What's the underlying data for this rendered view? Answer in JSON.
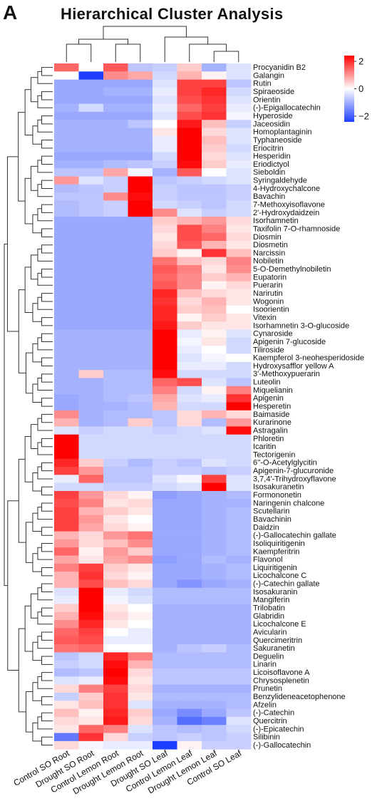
{
  "panel_label": "A",
  "chart_data": {
    "type": "heatmap",
    "title": "Hierarchical Cluster Analysis",
    "columns": [
      "Control SO Root",
      "Drought SO Root",
      "Control Lemon Root",
      "Drought Lemon Root",
      "Drought SO Leaf",
      "Control Lemon Leaf",
      "Drought Lemon Leaf",
      "Control SO Leaf"
    ],
    "color_scale": {
      "min": -2,
      "max": 2,
      "low": "#1f3fff",
      "mid": "#ffffff",
      "high": "#ff0000",
      "ticks": [
        "2",
        "0",
        "−2"
      ]
    },
    "rows": [
      {
        "name": "Procyanidin B2",
        "values": [
          1.2,
          0.0,
          1.3,
          -0.6,
          -0.5,
          0.4,
          -0.8,
          -0.3
        ]
      },
      {
        "name": "Galangin",
        "values": [
          0.0,
          -2.0,
          0.9,
          0.7,
          -0.4,
          0.6,
          0.1,
          -0.3
        ]
      },
      {
        "name": "Rutin",
        "values": [
          -0.9,
          -0.9,
          -0.9,
          -0.9,
          -0.3,
          1.5,
          1.5,
          -0.6
        ]
      },
      {
        "name": "Spiraeoside",
        "values": [
          -0.9,
          -0.9,
          -0.8,
          -0.8,
          -0.2,
          1.5,
          1.7,
          -0.4
        ]
      },
      {
        "name": "Orientin",
        "values": [
          -0.9,
          -0.9,
          -0.9,
          -0.9,
          -0.3,
          1.4,
          1.6,
          -0.3
        ]
      },
      {
        "name": "(-)-Epigallocatechin",
        "values": [
          -0.8,
          -0.4,
          -0.8,
          -0.8,
          -0.2,
          1.2,
          1.5,
          -0.2
        ]
      },
      {
        "name": "Hyperoside",
        "values": [
          -0.9,
          -0.9,
          -0.9,
          -0.9,
          -0.3,
          1.4,
          1.6,
          -0.1
        ]
      },
      {
        "name": "Jaceosidin",
        "values": [
          -0.8,
          -0.8,
          -0.8,
          -0.6,
          0.0,
          1.8,
          0.5,
          -0.5
        ]
      },
      {
        "name": "Homoplantaginin",
        "values": [
          -0.8,
          -0.8,
          -0.8,
          -0.8,
          0.2,
          2.0,
          0.3,
          -0.3
        ]
      },
      {
        "name": "Typhaneoside",
        "values": [
          -0.8,
          -0.8,
          -0.8,
          -0.8,
          -0.2,
          2.0,
          0.5,
          -0.3
        ]
      },
      {
        "name": "Eriocitrin",
        "values": [
          -0.8,
          -0.8,
          -0.8,
          -0.8,
          -0.2,
          2.0,
          0.4,
          -0.4
        ]
      },
      {
        "name": "Hesperidin",
        "values": [
          -0.9,
          -0.9,
          -0.9,
          -0.9,
          -0.4,
          2.0,
          0.3,
          -0.3
        ]
      },
      {
        "name": "Eriodictyol",
        "values": [
          -0.8,
          -0.8,
          -0.7,
          -0.6,
          -0.5,
          1.9,
          0.4,
          -0.2
        ]
      },
      {
        "name": "Sieboldin",
        "values": [
          -0.6,
          -0.6,
          0.7,
          -0.1,
          -0.8,
          1.3,
          0.0,
          -0.3
        ]
      },
      {
        "name": "Syringaldehyde",
        "values": [
          0.8,
          -0.3,
          -0.5,
          2.0,
          -0.6,
          -0.5,
          -0.4,
          -0.3
        ]
      },
      {
        "name": "4-Hydroxychalcone",
        "values": [
          -0.7,
          -0.6,
          -0.5,
          2.0,
          -0.5,
          -0.6,
          -0.6,
          -0.5
        ]
      },
      {
        "name": "Bavachin",
        "values": [
          -0.6,
          -0.6,
          0.9,
          1.9,
          -0.5,
          -0.6,
          -0.6,
          -0.5
        ]
      },
      {
        "name": "7-Methoxyisoflavone",
        "values": [
          -0.7,
          -0.6,
          -0.5,
          2.0,
          -0.4,
          -0.5,
          -0.6,
          -0.4
        ]
      },
      {
        "name": "2'-Hydroxydaidzein",
        "values": [
          -0.7,
          -0.6,
          -0.5,
          2.0,
          0.9,
          -0.3,
          -0.5,
          -0.4
        ]
      },
      {
        "name": "Isorhamnetin",
        "values": [
          -0.9,
          -0.9,
          -0.9,
          -0.9,
          0.4,
          0.6,
          0.8,
          0.3
        ]
      },
      {
        "name": "Taxifolin 7-O-rhamnoside",
        "values": [
          -0.9,
          -0.9,
          -0.9,
          -0.9,
          0.3,
          1.4,
          1.0,
          0.2
        ]
      },
      {
        "name": "Diosmin",
        "values": [
          -0.9,
          -0.9,
          -0.9,
          -0.9,
          0.2,
          1.4,
          1.2,
          0.3
        ]
      },
      {
        "name": "Diosmetin",
        "values": [
          -0.9,
          -0.9,
          -0.9,
          -0.9,
          0.3,
          1.3,
          0.6,
          0.2
        ]
      },
      {
        "name": "Narcissin",
        "values": [
          -0.9,
          -0.9,
          -0.9,
          -0.9,
          0.4,
          0.1,
          1.6,
          0.5
        ]
      },
      {
        "name": "Nobiletin",
        "values": [
          -0.9,
          -0.9,
          -0.9,
          -0.9,
          1.1,
          0.5,
          0.3,
          1.0
        ]
      },
      {
        "name": "5-O-Demethylnobiletin",
        "values": [
          -0.9,
          -0.9,
          -0.9,
          -0.9,
          1.3,
          1.0,
          0.2,
          0.9
        ]
      },
      {
        "name": "Eupatorin",
        "values": [
          -0.9,
          -0.9,
          -0.9,
          -0.9,
          1.2,
          0.9,
          0.4,
          0.6
        ]
      },
      {
        "name": "Puerarin",
        "values": [
          -0.9,
          -0.9,
          -0.9,
          -0.9,
          1.3,
          0.9,
          0.1,
          0.3
        ]
      },
      {
        "name": "Narirutin",
        "values": [
          -0.9,
          -0.9,
          -0.9,
          -0.9,
          1.7,
          0.5,
          0.3,
          0.2
        ]
      },
      {
        "name": "Wogonin",
        "values": [
          -0.9,
          -0.9,
          -0.9,
          -0.9,
          1.6,
          0.3,
          0.6,
          0.2
        ]
      },
      {
        "name": "Isoorientin",
        "values": [
          -0.9,
          -0.9,
          -0.9,
          -0.9,
          1.7,
          0.4,
          0.5,
          0.0
        ]
      },
      {
        "name": "Vitexin",
        "values": [
          -0.9,
          -0.9,
          -0.9,
          -0.9,
          1.7,
          0.1,
          0.4,
          0.2
        ]
      },
      {
        "name": "Isorhamnetin 3-O-glucoside",
        "values": [
          -0.9,
          -0.9,
          -0.9,
          -0.9,
          1.8,
          0.4,
          0.2,
          0.2
        ]
      },
      {
        "name": "Cynaroside",
        "values": [
          -0.8,
          -0.8,
          -0.8,
          -0.8,
          2.0,
          -0.2,
          0.1,
          -0.3
        ]
      },
      {
        "name": "Apigenin 7-glucoside",
        "values": [
          -0.8,
          -0.8,
          -0.8,
          -0.8,
          2.0,
          -0.1,
          0.2,
          -0.4
        ]
      },
      {
        "name": "Tiliroside",
        "values": [
          -0.8,
          -0.8,
          -0.8,
          -0.8,
          2.0,
          -0.2,
          0.0,
          -0.4
        ]
      },
      {
        "name": "Kaempferol 3-neohesperidoside",
        "values": [
          -0.8,
          -0.8,
          -0.8,
          -0.8,
          2.0,
          -0.3,
          -0.1,
          0.0
        ]
      },
      {
        "name": "Hydroxysafflor yellow A",
        "values": [
          -0.8,
          -0.8,
          -0.8,
          -0.8,
          2.0,
          -0.2,
          -0.2,
          -0.4
        ]
      },
      {
        "name": "3'-Methoxypuerarin",
        "values": [
          -0.8,
          0.4,
          -0.7,
          -0.7,
          1.9,
          -0.4,
          -0.4,
          -0.4
        ]
      },
      {
        "name": "Luteolin",
        "values": [
          -0.8,
          -0.8,
          -0.7,
          -0.7,
          1.2,
          1.4,
          -0.3,
          -0.6
        ]
      },
      {
        "name": "Miquelianin",
        "values": [
          -0.8,
          -0.8,
          -0.7,
          -0.7,
          1.0,
          -0.4,
          0.1,
          1.0
        ]
      },
      {
        "name": "Apigenin",
        "values": [
          -0.9,
          -0.8,
          -0.7,
          -0.6,
          0.7,
          -0.3,
          -0.2,
          1.6
        ]
      },
      {
        "name": "Hesperetin",
        "values": [
          -0.9,
          -0.8,
          -0.8,
          -0.7,
          0.6,
          -0.4,
          -0.4,
          2.0
        ]
      },
      {
        "name": "Baimaside",
        "values": [
          0.9,
          -0.8,
          -0.7,
          -0.7,
          -0.6,
          0.3,
          0.6,
          0.3
        ]
      },
      {
        "name": "Kurarinone",
        "values": [
          0.6,
          -0.8,
          -0.7,
          0.4,
          -0.6,
          0.3,
          -0.7,
          0.8
        ]
      },
      {
        "name": "Astragalin",
        "values": [
          -0.3,
          -0.5,
          -0.4,
          -0.4,
          -0.5,
          -0.4,
          -0.3,
          1.9
        ]
      },
      {
        "name": "Phloretin",
        "values": [
          2.0,
          -0.4,
          -0.4,
          -0.4,
          -0.4,
          -0.4,
          -0.4,
          -0.4
        ]
      },
      {
        "name": "Icaritin",
        "values": [
          2.0,
          -0.4,
          -0.4,
          -0.4,
          -0.4,
          -0.4,
          -0.4,
          -0.4
        ]
      },
      {
        "name": "Tectorigenin",
        "values": [
          2.0,
          -0.4,
          -0.4,
          -0.4,
          -0.4,
          -0.4,
          -0.4,
          -0.4
        ]
      },
      {
        "name": "6''-O-Acetylglycitin",
        "values": [
          1.7,
          0.4,
          -0.5,
          -0.7,
          -0.5,
          -0.6,
          -0.3,
          -0.4
        ]
      },
      {
        "name": "Apigenin-7-glucuronide",
        "values": [
          1.5,
          0.8,
          -0.6,
          -0.6,
          -0.5,
          -0.5,
          -0.6,
          -0.5
        ]
      },
      {
        "name": "3,7,4'-Trihydroxyflavone",
        "values": [
          -0.2,
          1.2,
          -0.6,
          -0.6,
          -0.3,
          -0.1,
          1.5,
          -0.3
        ]
      },
      {
        "name": "Isosakuranetin",
        "values": [
          -0.4,
          -0.4,
          -0.5,
          -0.5,
          -0.4,
          -0.3,
          2.0,
          -0.3
        ]
      },
      {
        "name": "Formononetin",
        "values": [
          1.5,
          0.8,
          0.3,
          0.1,
          -1.0,
          -0.9,
          -0.8,
          -0.7
        ]
      },
      {
        "name": "Naringenin chalcone",
        "values": [
          1.4,
          1.0,
          0.2,
          0.3,
          -0.9,
          -0.9,
          -0.8,
          -0.8
        ]
      },
      {
        "name": "Scutellarin",
        "values": [
          1.5,
          0.6,
          0.4,
          0.2,
          -0.9,
          -0.9,
          -0.8,
          -0.7
        ]
      },
      {
        "name": "Bavachinin",
        "values": [
          1.5,
          0.8,
          0.2,
          0.0,
          -0.9,
          -0.9,
          -0.8,
          -0.7
        ]
      },
      {
        "name": "Daidzin",
        "values": [
          1.5,
          0.7,
          0.3,
          0.1,
          -0.9,
          -0.9,
          -0.8,
          -0.7
        ]
      },
      {
        "name": "(-)-Gallocatechin gallate",
        "values": [
          0.6,
          0.3,
          0.8,
          1.1,
          -0.9,
          -0.9,
          -0.8,
          -0.7
        ]
      },
      {
        "name": "Isoliquiritigenin",
        "values": [
          0.8,
          0.3,
          0.5,
          0.9,
          -0.9,
          -0.9,
          -0.8,
          -0.7
        ]
      },
      {
        "name": "Kaempferitrin",
        "values": [
          1.2,
          0.1,
          0.8,
          0.4,
          -0.9,
          -0.9,
          -0.8,
          -0.7
        ]
      },
      {
        "name": "Flavonol",
        "values": [
          0.7,
          0.2,
          0.7,
          0.9,
          -1.0,
          -0.9,
          -0.7,
          -0.8
        ]
      },
      {
        "name": "Liquiritigenin",
        "values": [
          1.0,
          1.5,
          0.4,
          0.2,
          -0.9,
          -0.9,
          -0.8,
          -0.7
        ]
      },
      {
        "name": "Licochalcone C",
        "values": [
          0.6,
          1.6,
          0.3,
          0.1,
          -0.9,
          -0.9,
          -0.8,
          -0.7
        ]
      },
      {
        "name": "(-)-Catechin gallate",
        "values": [
          0.6,
          1.4,
          0.5,
          0.3,
          -0.9,
          -1.1,
          -0.9,
          -0.8
        ]
      },
      {
        "name": "Isosakuranin",
        "values": [
          -0.3,
          2.0,
          -0.2,
          -0.4,
          -0.7,
          -0.7,
          -0.7,
          -0.7
        ]
      },
      {
        "name": "Mangiferin",
        "values": [
          -0.2,
          2.0,
          -0.1,
          -0.3,
          -0.7,
          -0.7,
          -0.7,
          -0.7
        ]
      },
      {
        "name": "Trilobatin",
        "values": [
          0.4,
          2.0,
          0.2,
          0.0,
          -0.8,
          -0.8,
          -0.8,
          -0.8
        ]
      },
      {
        "name": "Glabridin",
        "values": [
          0.6,
          1.9,
          0.3,
          0.1,
          -0.8,
          -0.8,
          -0.8,
          -0.8
        ]
      },
      {
        "name": "Licochalcone E",
        "values": [
          0.9,
          1.7,
          0.2,
          0.0,
          -0.8,
          -0.8,
          -0.8,
          -0.8
        ]
      },
      {
        "name": "Avicularin",
        "values": [
          1.2,
          1.5,
          0.0,
          -0.2,
          -0.8,
          -0.8,
          -0.8,
          -0.8
        ]
      },
      {
        "name": "Quercimeritrin",
        "values": [
          1.3,
          1.4,
          -0.2,
          -0.2,
          -0.8,
          -0.8,
          -0.8,
          -0.8
        ]
      },
      {
        "name": "Sakuranetin",
        "values": [
          1.1,
          1.2,
          0.0,
          0.0,
          -0.8,
          -0.6,
          -0.5,
          -0.7
        ]
      },
      {
        "name": "Deguelin",
        "values": [
          -0.6,
          -0.4,
          1.7,
          1.0,
          -0.7,
          -0.7,
          -0.7,
          -0.7
        ]
      },
      {
        "name": "Linarin",
        "values": [
          -0.5,
          -0.4,
          1.9,
          0.6,
          -0.7,
          -0.7,
          -0.7,
          -0.7
        ]
      },
      {
        "name": "Licoisoflavone A",
        "values": [
          -0.7,
          -0.6,
          2.0,
          0.3,
          -0.6,
          -0.6,
          -0.6,
          -0.6
        ]
      },
      {
        "name": "Chrysosplenetin",
        "values": [
          -0.3,
          -0.2,
          1.9,
          0.2,
          -0.6,
          -0.6,
          -0.6,
          -0.6
        ]
      },
      {
        "name": "Prunetin",
        "values": [
          0.3,
          1.0,
          1.5,
          0.3,
          -0.8,
          -0.8,
          -0.8,
          -0.8
        ]
      },
      {
        "name": "Benzylideneacetophenone",
        "values": [
          -0.5,
          0.4,
          1.6,
          0.2,
          -0.7,
          -0.7,
          -0.7,
          -0.7
        ]
      },
      {
        "name": "Afzelin",
        "values": [
          0.2,
          0.5,
          1.6,
          -0.3,
          -0.8,
          -0.8,
          -0.8,
          -0.7
        ]
      },
      {
        "name": "(-)-Catechin",
        "values": [
          0.5,
          0.1,
          1.7,
          0.4,
          -0.9,
          -1.2,
          -0.9,
          -0.6
        ]
      },
      {
        "name": "Quercitrin",
        "values": [
          0.3,
          0.2,
          1.8,
          0.3,
          -0.8,
          -1.5,
          -1.3,
          -0.3
        ]
      },
      {
        "name": "(-)-Epicatechin",
        "values": [
          0.2,
          1.2,
          1.0,
          -0.3,
          -0.6,
          -0.7,
          -0.6,
          -0.4
        ]
      },
      {
        "name": "Silibinin",
        "values": [
          -1.4,
          1.6,
          0.3,
          -0.5,
          -0.6,
          -0.5,
          -0.6,
          -0.5
        ]
      },
      {
        "name": "(-)-Gallocatechin",
        "values": [
          0.3,
          -0.1,
          -0.2,
          -0.2,
          -2.0,
          0.1,
          -0.5,
          -0.5
        ]
      }
    ]
  }
}
